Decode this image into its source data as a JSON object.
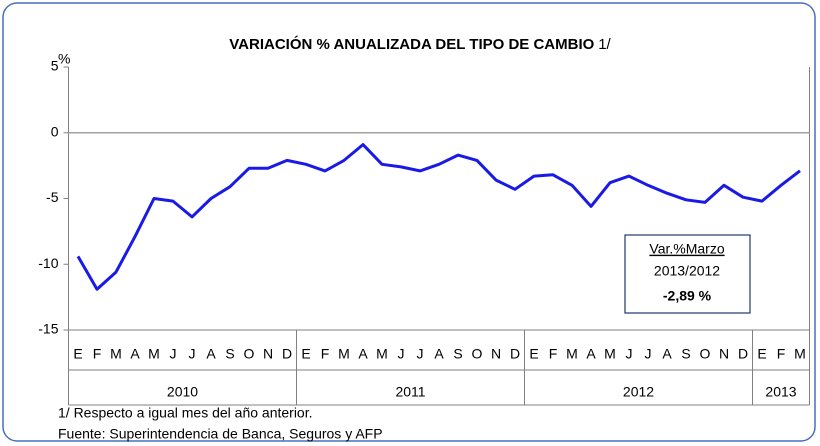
{
  "chart_data": {
    "type": "line",
    "title": "VARIACIÓN % ANUALIZADA DEL TIPO DE CAMBIO",
    "title_note": "1/",
    "y_unit": "%",
    "category_groups": [
      {
        "name": "2010",
        "categories": [
          "E",
          "F",
          "M",
          "A",
          "M",
          "J",
          "J",
          "A",
          "S",
          "O",
          "N",
          "D"
        ]
      },
      {
        "name": "2011",
        "categories": [
          "E",
          "F",
          "M",
          "A",
          "M",
          "J",
          "J",
          "A",
          "S",
          "O",
          "N",
          "D"
        ]
      },
      {
        "name": "2012",
        "categories": [
          "E",
          "F",
          "M",
          "A",
          "M",
          "J",
          "J",
          "A",
          "S",
          "O",
          "N",
          "D"
        ]
      },
      {
        "name": "2013",
        "categories": [
          "E",
          "F",
          "M"
        ]
      }
    ],
    "series": [
      {
        "name": "Variación % anualizada",
        "color": "#1a1ae6",
        "values": [
          -9.4,
          -11.9,
          -10.6,
          -7.9,
          -5.0,
          -5.2,
          -6.4,
          -5.0,
          -4.1,
          -2.7,
          -2.7,
          -2.1,
          -2.4,
          -2.9,
          -2.1,
          -0.9,
          -2.4,
          -2.6,
          -2.9,
          -2.4,
          -1.7,
          -2.1,
          -3.6,
          -4.3,
          -3.3,
          -3.2,
          -4.0,
          -5.6,
          -3.8,
          -3.3,
          -4.0,
          -4.6,
          -5.1,
          -5.3,
          -4.0,
          -4.9,
          -5.2,
          -4.0,
          -2.89
        ]
      }
    ],
    "ylim": [
      -15,
      5
    ],
    "yticks": [
      -15,
      -10,
      -5,
      0,
      5
    ],
    "annotation": {
      "title": "Var.%Marzo",
      "period": "2013/2012",
      "value_label": "-2,89 %"
    },
    "footnotes": [
      "1/ Respecto a igual mes del año anterior.",
      "Fuente: Superintendencia de Banca, Seguros y AFP"
    ]
  }
}
